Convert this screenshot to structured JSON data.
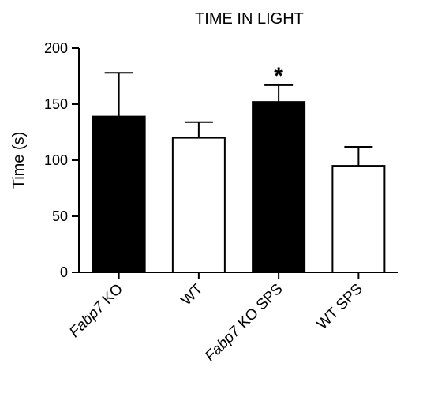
{
  "chart_data": {
    "type": "bar",
    "title": "TIME IN LIGHT",
    "ylabel": "Time (s)",
    "xlabel": "",
    "ylim": [
      0,
      200
    ],
    "yticks": [
      "0",
      "50",
      "100",
      "150",
      "200"
    ],
    "categories": [
      {
        "italic": "Fabp7",
        "rest": " KO"
      },
      {
        "italic": "",
        "rest": "WT"
      },
      {
        "italic": "Fabp7",
        "rest": " KO SPS"
      },
      {
        "italic": "",
        "rest": "WT SPS"
      }
    ],
    "values": [
      139,
      120,
      152,
      95
    ],
    "errors": [
      39,
      14,
      15,
      17
    ],
    "fills": [
      "#000000",
      "#ffffff",
      "#000000",
      "#ffffff"
    ],
    "annotations": [
      {
        "category_index": 2,
        "text": "*"
      }
    ]
  }
}
